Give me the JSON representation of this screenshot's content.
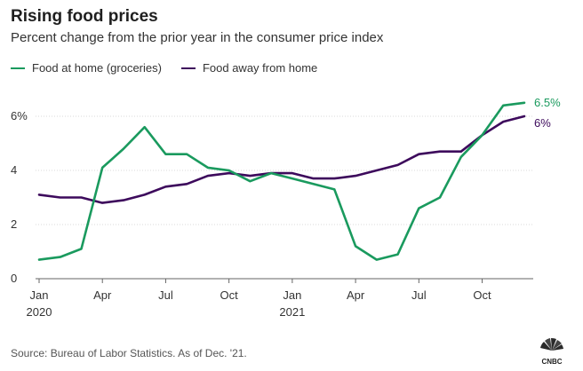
{
  "header": {
    "title": "Rising food prices",
    "subtitle": "Percent change from the prior year in the consumer price index"
  },
  "legend": {
    "items": [
      {
        "label": "Food at home (groceries)",
        "color": "#1a9a5e"
      },
      {
        "label": "Food away from home",
        "color": "#3d0a5c"
      }
    ]
  },
  "chart_data": {
    "type": "line",
    "title": "Rising food prices",
    "subtitle": "Percent change from the prior year in the consumer price index",
    "xlabel": "",
    "ylabel": "",
    "ylim": [
      0,
      6.6
    ],
    "yticks": [
      {
        "value": 0,
        "label": "0"
      },
      {
        "value": 2,
        "label": "2"
      },
      {
        "value": 4,
        "label": "4"
      },
      {
        "value": 6,
        "label": "6%"
      }
    ],
    "xticks": [
      {
        "index": 0,
        "label": "Jan",
        "year": "2020"
      },
      {
        "index": 3,
        "label": "Apr",
        "year": ""
      },
      {
        "index": 6,
        "label": "Jul",
        "year": ""
      },
      {
        "index": 9,
        "label": "Oct",
        "year": ""
      },
      {
        "index": 12,
        "label": "Jan",
        "year": "2021"
      },
      {
        "index": 15,
        "label": "Apr",
        "year": ""
      },
      {
        "index": 18,
        "label": "Jul",
        "year": ""
      },
      {
        "index": 21,
        "label": "Oct",
        "year": ""
      }
    ],
    "x": [
      "Jan 2020",
      "Feb 2020",
      "Mar 2020",
      "Apr 2020",
      "May 2020",
      "Jun 2020",
      "Jul 2020",
      "Aug 2020",
      "Sep 2020",
      "Oct 2020",
      "Nov 2020",
      "Dec 2020",
      "Jan 2021",
      "Feb 2021",
      "Mar 2021",
      "Apr 2021",
      "May 2021",
      "Jun 2021",
      "Jul 2021",
      "Aug 2021",
      "Sep 2021",
      "Oct 2021",
      "Nov 2021",
      "Dec 2021"
    ],
    "series": [
      {
        "name": "Food at home (groceries)",
        "color": "#1a9a5e",
        "end_label": "6.5%",
        "values": [
          0.7,
          0.8,
          1.1,
          4.1,
          4.8,
          5.6,
          4.6,
          4.6,
          4.1,
          4.0,
          3.6,
          3.9,
          3.7,
          3.5,
          3.3,
          1.2,
          0.7,
          0.9,
          2.6,
          3.0,
          4.5,
          5.3,
          6.4,
          6.5
        ]
      },
      {
        "name": "Food away from home",
        "color": "#3d0a5c",
        "end_label": "6%",
        "values": [
          3.1,
          3.0,
          3.0,
          2.8,
          2.9,
          3.1,
          3.4,
          3.5,
          3.8,
          3.9,
          3.8,
          3.9,
          3.9,
          3.7,
          3.7,
          3.8,
          4.0,
          4.2,
          4.6,
          4.7,
          4.7,
          5.3,
          5.8,
          6.0
        ]
      }
    ],
    "grid": true
  },
  "footer": {
    "source": "Source: Bureau of Labor Statistics. As of Dec. '21.",
    "brand": "CNBC"
  }
}
